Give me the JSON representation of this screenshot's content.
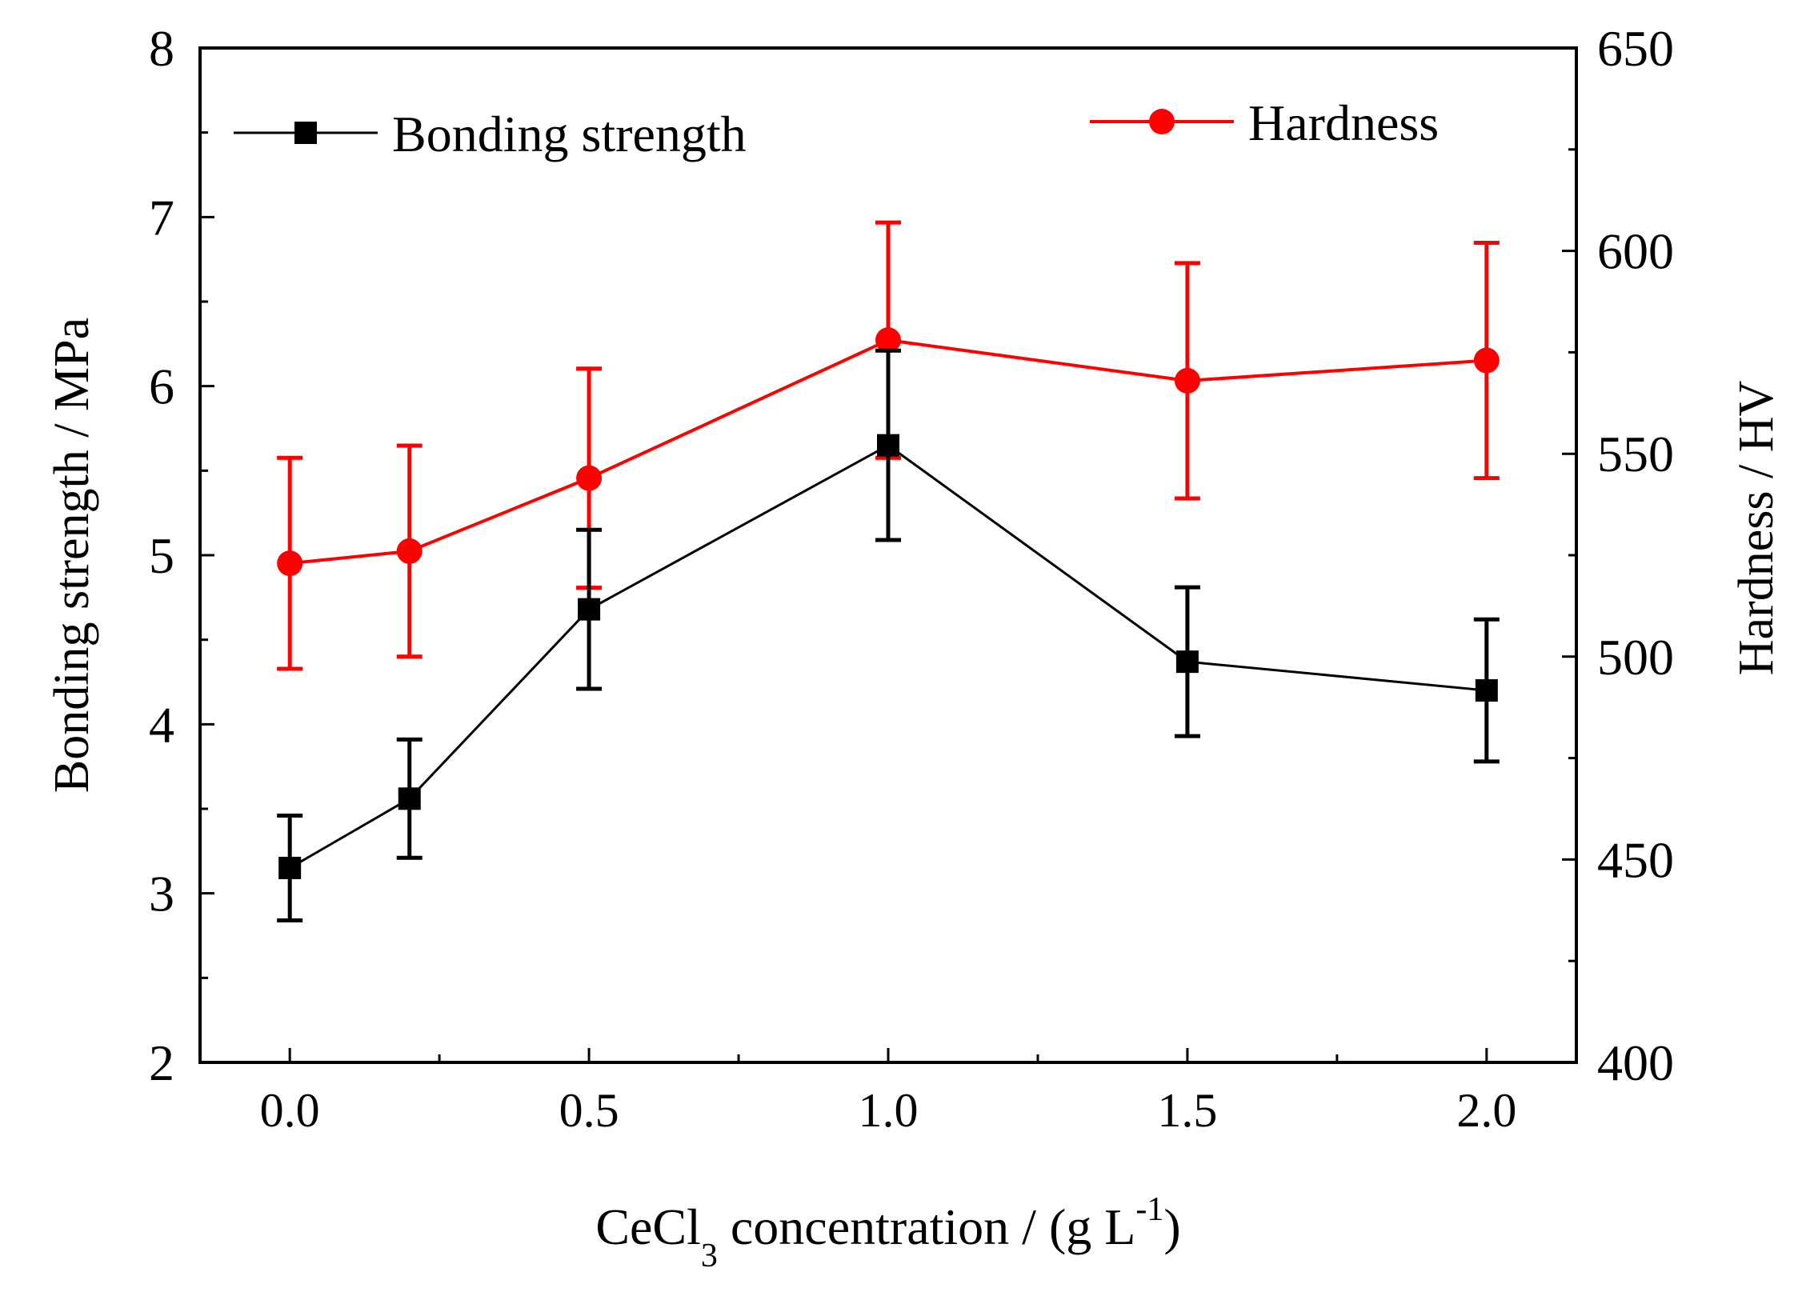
{
  "chart_data": {
    "type": "line",
    "title": "",
    "xlabel": {
      "main": "CeCl",
      "sub": "3",
      "rest": " concentration  / (g L",
      "sup": "-1",
      "end": ")"
    },
    "ylabel_left": "Bonding strength / MPa",
    "ylabel_right": "Hardness / HV",
    "xlim": [
      -0.15,
      2.15
    ],
    "ylim_left": [
      2,
      8
    ],
    "ylim_right": [
      400,
      650
    ],
    "x_ticks": [
      0.0,
      0.5,
      1.0,
      1.5,
      2.0
    ],
    "x_tick_labels": [
      "0.0",
      "0.5",
      "1.0",
      "1.5",
      "2.0"
    ],
    "x_minor_ticks": [
      0.25,
      0.75,
      1.25,
      1.75
    ],
    "y_left_ticks": [
      2,
      3,
      4,
      5,
      6,
      7,
      8
    ],
    "y_left_tick_labels": [
      "2",
      "3",
      "4",
      "5",
      "6",
      "7",
      "8"
    ],
    "y_left_minor_ticks": [
      2.5,
      3.5,
      4.5,
      5.5,
      6.5,
      7.5
    ],
    "y_right_ticks": [
      400,
      450,
      500,
      550,
      600,
      650
    ],
    "y_right_tick_labels": [
      "400",
      "450",
      "500",
      "550",
      "600",
      "650"
    ],
    "y_right_minor_ticks": [
      425,
      475,
      525,
      575,
      625
    ],
    "series": [
      {
        "name": "Bonding strength",
        "axis": "left",
        "color": "#000000",
        "marker": "square",
        "x": [
          0.0,
          0.2,
          0.5,
          1.0,
          1.5,
          2.0
        ],
        "y": [
          3.15,
          3.56,
          4.68,
          5.65,
          4.37,
          4.2
        ],
        "err": [
          0.31,
          0.35,
          0.47,
          0.56,
          0.44,
          0.42
        ]
      },
      {
        "name": "Hardness",
        "axis": "right",
        "color": "#ff0000",
        "marker": "circle",
        "x": [
          0.0,
          0.2,
          0.5,
          1.0,
          1.5,
          2.0
        ],
        "y": [
          523,
          526,
          544,
          578,
          568,
          573
        ],
        "err": [
          26,
          26,
          27,
          29,
          29,
          29
        ]
      }
    ],
    "legend": [
      {
        "label": "Bonding strength",
        "position": "top-left"
      },
      {
        "label": "Hardness",
        "position": "top-right"
      }
    ]
  }
}
